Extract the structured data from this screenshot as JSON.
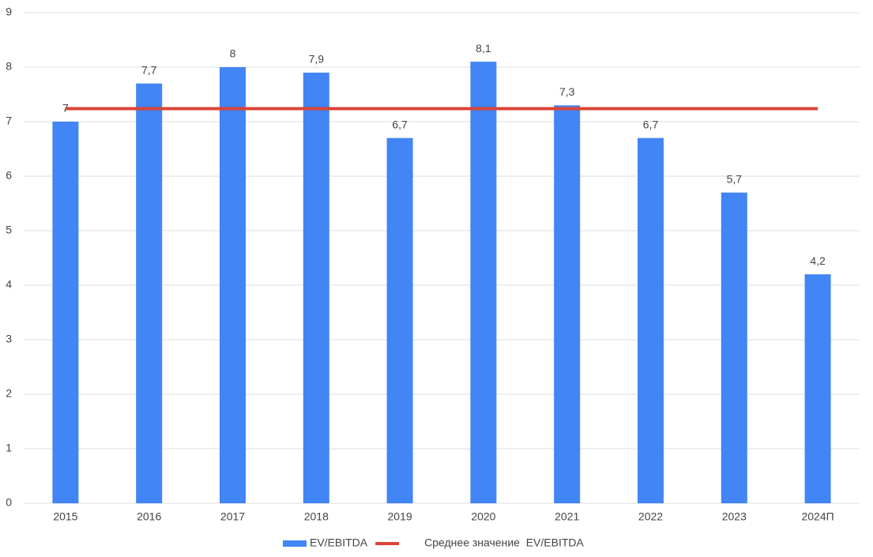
{
  "chart_data": {
    "type": "bar",
    "categories": [
      "2015",
      "2016",
      "2017",
      "2018",
      "2019",
      "2020",
      "2021",
      "2022",
      "2023",
      "2024П"
    ],
    "series": [
      {
        "name": "EV/EBITDA",
        "type": "bar",
        "color": "#4285f4",
        "values": [
          7,
          7.7,
          8,
          7.9,
          6.7,
          8.1,
          7.3,
          6.7,
          5.7,
          4.2
        ],
        "value_labels": [
          "7",
          "7,7",
          "8",
          "7,9",
          "6,7",
          "8,1",
          "7,3",
          "6,7",
          "5,7",
          "4,2"
        ]
      },
      {
        "name": "Среднее значение  EV/EBITDA",
        "type": "line",
        "color": "#db4437",
        "values": [
          7.24,
          7.24,
          7.24,
          7.24,
          7.24,
          7.24,
          7.24,
          7.24,
          7.24,
          7.24
        ]
      }
    ],
    "ylim": [
      0,
      9
    ],
    "yticks": [
      0,
      1,
      2,
      3,
      4,
      5,
      6,
      7,
      8,
      9
    ],
    "grid": true,
    "legend": "bottom"
  }
}
